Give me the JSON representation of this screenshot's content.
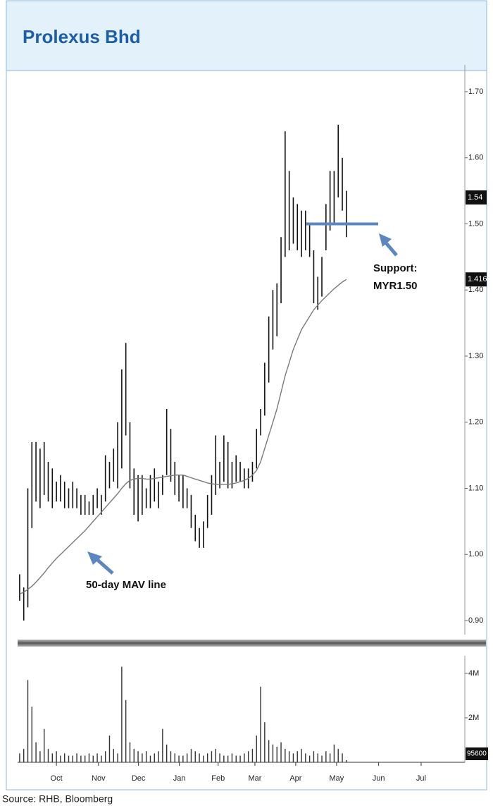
{
  "header": {
    "title": "Prolexus Bhd"
  },
  "chart_data": [
    {
      "type": "hilo",
      "high": [
        0.97,
        0.95,
        1.1,
        1.17,
        1.17,
        1.16,
        1.17,
        1.14,
        1.13,
        1.11,
        1.12,
        1.11,
        1.1,
        1.11,
        1.1,
        1.09,
        1.09,
        1.08,
        1.09,
        1.1,
        1.09,
        1.15,
        1.14,
        1.16,
        1.2,
        1.28,
        1.32,
        1.2,
        1.13,
        1.12,
        1.12,
        1.1,
        1.12,
        1.13,
        1.11,
        1.12,
        1.22,
        1.19,
        1.14,
        1.12,
        1.12,
        1.1,
        1.09,
        1.06,
        1.04,
        1.05,
        1.09,
        1.12,
        1.18,
        1.14,
        1.18,
        1.17,
        1.14,
        1.15,
        1.14,
        1.13,
        1.13,
        1.14,
        1.19,
        1.22,
        1.29,
        1.36,
        1.4,
        1.41,
        1.48,
        1.64,
        1.58,
        1.54,
        1.53,
        1.52,
        1.52,
        1.5,
        1.46,
        1.42,
        1.45,
        1.53,
        1.58,
        1.58,
        1.65,
        1.6,
        1.55
      ],
      "low": [
        0.93,
        0.9,
        0.92,
        1.04,
        1.08,
        1.07,
        1.09,
        1.08,
        1.07,
        1.08,
        1.08,
        1.07,
        1.07,
        1.07,
        1.07,
        1.06,
        1.06,
        1.06,
        1.06,
        1.07,
        1.06,
        1.08,
        1.1,
        1.11,
        1.1,
        1.13,
        1.18,
        1.1,
        1.06,
        1.05,
        1.06,
        1.07,
        1.07,
        1.08,
        1.07,
        1.09,
        1.12,
        1.11,
        1.09,
        1.08,
        1.07,
        1.07,
        1.04,
        1.02,
        1.01,
        1.01,
        1.04,
        1.06,
        1.09,
        1.1,
        1.11,
        1.1,
        1.1,
        1.11,
        1.11,
        1.1,
        1.1,
        1.11,
        1.13,
        1.18,
        1.21,
        1.26,
        1.31,
        1.33,
        1.38,
        1.45,
        1.46,
        1.47,
        1.46,
        1.45,
        1.46,
        1.45,
        1.38,
        1.37,
        1.39,
        1.46,
        1.49,
        1.5,
        1.54,
        1.52,
        1.48
      ],
      "mav": [
        0.94,
        0.943,
        0.947,
        0.952,
        0.958,
        0.965,
        0.972,
        0.98,
        0.987,
        0.994,
        1.0,
        1.006,
        1.012,
        1.018,
        1.024,
        1.03,
        1.036,
        1.043,
        1.05,
        1.057,
        1.064,
        1.071,
        1.078,
        1.085,
        1.092,
        1.1,
        1.107,
        1.112,
        1.114,
        1.115,
        1.115,
        1.114,
        1.114,
        1.115,
        1.116,
        1.117,
        1.118,
        1.119,
        1.12,
        1.12,
        1.12,
        1.118,
        1.116,
        1.114,
        1.112,
        1.11,
        1.108,
        1.107,
        1.106,
        1.106,
        1.106,
        1.106,
        1.107,
        1.108,
        1.11,
        1.112,
        1.115,
        1.12,
        1.127,
        1.14,
        1.16,
        1.18,
        1.2,
        1.22,
        1.245,
        1.27,
        1.29,
        1.31,
        1.325,
        1.34,
        1.35,
        1.36,
        1.37,
        1.377,
        1.384,
        1.39,
        1.396,
        1.402,
        1.407,
        1.412,
        1.416
      ],
      "color": "#111111",
      "mav_color": "#7a7a7a",
      "xlim": [
        -0.5,
        109
      ],
      "ylim": [
        0.88,
        1.74
      ],
      "yticks": [
        {
          "value": 0.9,
          "label": "0.90"
        },
        {
          "value": 1.0,
          "label": "1.00"
        },
        {
          "value": 1.1,
          "label": "1.10"
        },
        {
          "value": 1.2,
          "label": "1.20"
        },
        {
          "value": 1.3,
          "label": "1.30"
        },
        {
          "value": 1.4,
          "label": "1.40"
        },
        {
          "value": 1.5,
          "label": "1.50"
        },
        {
          "value": 1.6,
          "label": "1.60"
        },
        {
          "value": 1.7,
          "label": "1.70"
        }
      ],
      "price_labels": [
        1.54,
        1.416
      ],
      "support": 1.5,
      "support_color": "#5b86c0",
      "annotations": [
        "Support:",
        "MYR1.50",
        "50-day MAV line"
      ]
    },
    {
      "type": "volume",
      "values": [
        400000,
        600000,
        3700000,
        2500000,
        900000,
        500000,
        1500000,
        600000,
        400000,
        500000,
        300000,
        400000,
        300000,
        300000,
        400000,
        300000,
        300000,
        400000,
        300000,
        400000,
        300000,
        500000,
        1200000,
        600000,
        400000,
        4300000,
        2800000,
        900000,
        600000,
        500000,
        400000,
        500000,
        300000,
        400000,
        500000,
        1500000,
        800000,
        500000,
        400000,
        300000,
        300000,
        400000,
        600000,
        500000,
        400000,
        300000,
        400000,
        500000,
        600000,
        400000,
        300000,
        300000,
        400000,
        300000,
        300000,
        400000,
        500000,
        600000,
        1200000,
        3400000,
        1800000,
        1000000,
        800000,
        700000,
        900000,
        600000,
        500000,
        400000,
        500000,
        600000,
        400000,
        300000,
        500000,
        400000,
        300000,
        500000,
        400000,
        800000,
        600000,
        400000,
        95600
      ],
      "color": "#333333",
      "xlim": [
        -0.5,
        109
      ],
      "ylim": [
        0,
        4600000
      ],
      "yticks": [
        {
          "value": 2000000,
          "label": "2M"
        },
        {
          "value": 4000000,
          "label": "4M"
        }
      ],
      "last_label": 95600,
      "xticks": [
        {
          "value": 9,
          "label": "Oct"
        },
        {
          "value": 19.3,
          "label": "Nov"
        },
        {
          "value": 29.1,
          "label": "Dec"
        },
        {
          "value": 39.1,
          "label": "Jan"
        },
        {
          "value": 48.6,
          "label": "Feb"
        },
        {
          "value": 57.6,
          "label": "Mar"
        },
        {
          "value": 67.6,
          "label": "Apr"
        },
        {
          "value": 77.6,
          "label": "May"
        },
        {
          "value": 87.9,
          "label": "Jun"
        },
        {
          "value": 98.3,
          "label": "Jul"
        }
      ]
    }
  ],
  "source": "Source: RHB, Bloomberg"
}
